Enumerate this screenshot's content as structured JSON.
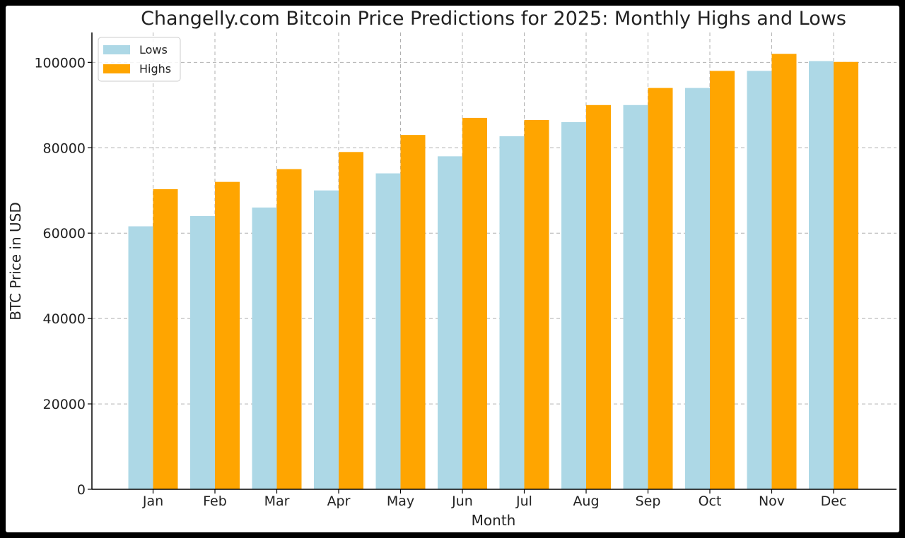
{
  "chart_data": {
    "type": "bar",
    "title": "Changelly.com Bitcoin Price Predictions for 2025: Monthly Highs and Lows",
    "xlabel": "Month",
    "ylabel": "BTC Price in USD",
    "categories": [
      "Jan",
      "Feb",
      "Mar",
      "Apr",
      "May",
      "Jun",
      "Jul",
      "Aug",
      "Sep",
      "Oct",
      "Nov",
      "Dec"
    ],
    "series": [
      {
        "name": "Lows",
        "color": "#add8e6",
        "values": [
          61600,
          64000,
          66000,
          70000,
          74000,
          78000,
          82700,
          86000,
          90000,
          94000,
          98000,
          100300
        ]
      },
      {
        "name": "Highs",
        "color": "#ffa500",
        "values": [
          70300,
          72000,
          75000,
          79000,
          83000,
          87000,
          86500,
          90000,
          94000,
          98000,
          102000,
          100100
        ]
      }
    ],
    "ylim": [
      0,
      107000
    ],
    "yticks": [
      0,
      20000,
      40000,
      60000,
      80000,
      100000
    ],
    "ytick_labels": [
      "0",
      "20000",
      "40000",
      "60000",
      "80000",
      "100000"
    ],
    "grid": true,
    "legend_position": "top-left"
  }
}
